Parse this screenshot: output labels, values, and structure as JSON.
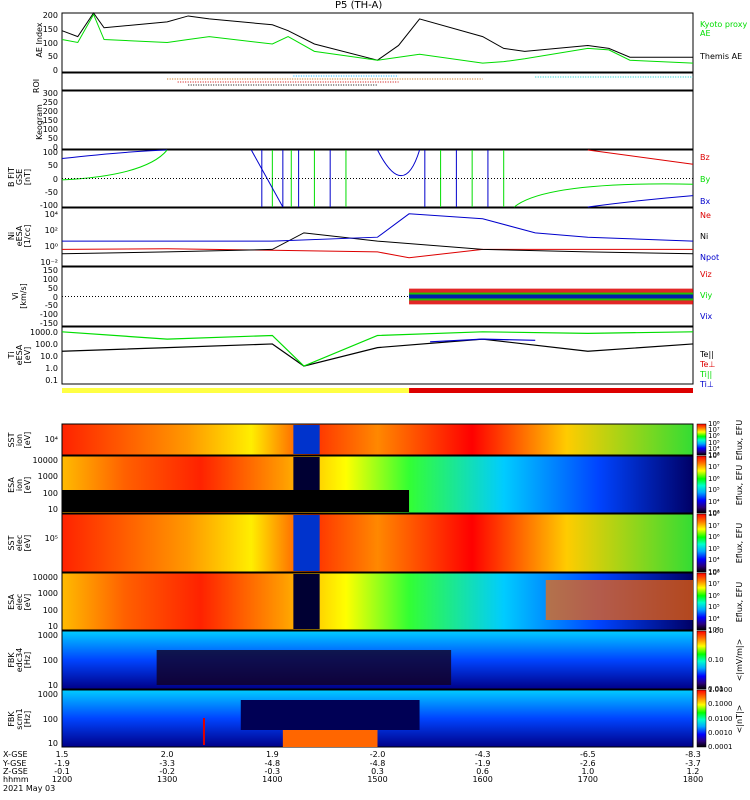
{
  "title": "P5 (TH-A)",
  "colors": {
    "black": "#000000",
    "green": "#00dd00",
    "red": "#dd0000",
    "blue": "#0000cc",
    "cyan": "#00cccc"
  },
  "ae_panel": {
    "ylabel": "AE Index",
    "yticks": [
      "200",
      "150",
      "100",
      "50",
      "0"
    ],
    "legend": [
      {
        "text": "Kyoto proxy AE",
        "color": "#00dd00"
      },
      {
        "text": "Themis AE",
        "color": "#000000"
      }
    ]
  },
  "roi_panel": {
    "ylabel": "ROI"
  },
  "keogram_panel": {
    "ylabel": "Keogram",
    "yticks": [
      "300",
      "250",
      "200",
      "150",
      "100",
      "50",
      "0"
    ]
  },
  "bfit_panel": {
    "ylabel": [
      "B FIT",
      "GSE",
      "[nT]"
    ],
    "yticks": [
      "100",
      "50",
      "0",
      "-50",
      "-100"
    ],
    "legend": [
      {
        "text": "Bz",
        "color": "#dd0000"
      },
      {
        "text": "By",
        "color": "#00dd00"
      },
      {
        "text": "Bx",
        "color": "#0000cc"
      }
    ]
  },
  "density_panel": {
    "ylabel": [
      "Ni",
      "eESA",
      "[1/cc]"
    ],
    "yticks": [
      "10^4",
      "10^2",
      "10^0",
      "10^-2"
    ],
    "legend": [
      {
        "text": "Ne",
        "color": "#dd0000"
      },
      {
        "text": "Ni",
        "color": "#000000"
      },
      {
        "text": "Npot",
        "color": "#0000cc"
      }
    ]
  },
  "velocity_panel": {
    "ylabel": [
      "Vi",
      "[km/s]"
    ],
    "yticks": [
      "150",
      "100",
      "50",
      "0",
      "-50",
      "-100",
      "-150"
    ],
    "legend": [
      {
        "text": "Viz",
        "color": "#dd0000"
      },
      {
        "text": "Viy",
        "color": "#00dd00"
      },
      {
        "text": "Vix",
        "color": "#0000cc"
      }
    ]
  },
  "temperature_panel": {
    "ylabel": [
      "Ti",
      "eESA",
      "[eV]"
    ],
    "yticks": [
      "1000.0",
      "100.0",
      "10.0",
      "1.0",
      "0.1"
    ],
    "legend": [
      {
        "text": "Te||",
        "color": "#000000"
      },
      {
        "text": "Te⊥",
        "color": "#dd0000"
      },
      {
        "text": "Ti||",
        "color": "#00dd00"
      },
      {
        "text": "Ti⊥",
        "color": "#0000cc"
      }
    ]
  },
  "spectrograms": [
    {
      "id": "sst-ion",
      "ylabel": [
        "SST",
        "ion",
        "[eV]"
      ],
      "yticks": [
        "10^4"
      ],
      "cbar_label": "Eflux, EFU",
      "cbar_ticks": [
        "10^8",
        "10^7",
        "10^6",
        "10^5",
        "10^4",
        "10^3"
      ]
    },
    {
      "id": "esa-ion",
      "ylabel": [
        "ESA",
        "ion",
        "[eV]"
      ],
      "yticks": [
        "10000",
        "1000",
        "100",
        "10"
      ],
      "cbar_label": "Eflux, EFU",
      "cbar_ticks": [
        "10^8",
        "10^7",
        "10^6",
        "10^5",
        "10^4",
        "10^3"
      ]
    },
    {
      "id": "sst-elec",
      "ylabel": [
        "SST",
        "elec",
        "[eV]"
      ],
      "yticks": [
        "10^5"
      ],
      "cbar_label": "Eflux, EFU",
      "cbar_ticks": [
        "10^8",
        "10^7",
        "10^6",
        "10^5",
        "10^4",
        "10^3"
      ]
    },
    {
      "id": "esa-elec",
      "ylabel": [
        "ESA",
        "elec",
        "[eV]"
      ],
      "yticks": [
        "10000",
        "1000",
        "100",
        "10"
      ],
      "cbar_label": "Eflux, EFU",
      "cbar_ticks": [
        "10^8",
        "10^7",
        "10^6",
        "10^5",
        "10^4",
        "10^3"
      ]
    },
    {
      "id": "fbk-e",
      "ylabel": [
        "FBK",
        "edc34",
        "[Hz]"
      ],
      "yticks": [
        "1000",
        "100",
        "10"
      ],
      "cbar_label": "<|mV/m|>",
      "cbar_ticks": [
        "1.00",
        "0.10",
        "0.01"
      ]
    },
    {
      "id": "fbk-b",
      "ylabel": [
        "FBK",
        "scm1",
        "[Hz]"
      ],
      "yticks": [
        "1000",
        "100",
        "10"
      ],
      "cbar_label": "<|nT|>",
      "cbar_ticks": [
        "1.0000",
        "0.1000",
        "0.0100",
        "0.0010",
        "0.0001"
      ]
    }
  ],
  "xaxis": {
    "row_labels": [
      "X-GSE",
      "Y-GSE",
      "Z-GSE",
      "hhmm",
      "2021 May 03"
    ],
    "columns": [
      {
        "x": "1.5",
        "y": "-1.9",
        "z": "-0.1",
        "t": "1200"
      },
      {
        "x": "2.0",
        "y": "-3.3",
        "z": "-0.2",
        "t": "1300"
      },
      {
        "x": "1.9",
        "y": "-4.8",
        "z": "-0.3",
        "t": "1400"
      },
      {
        "x": "-2.0",
        "y": "-4.8",
        "z": "0.3",
        "t": "1500"
      },
      {
        "x": "-4.3",
        "y": "-1.9",
        "z": "0.6",
        "t": "1600"
      },
      {
        "x": "-6.5",
        "y": "-2.6",
        "z": "1.0",
        "t": "1700"
      },
      {
        "x": "-8.3",
        "y": "-3.7",
        "z": "1.2",
        "t": "1800"
      }
    ]
  },
  "chart_data": [
    {
      "type": "line",
      "title": "AE Index",
      "ylabel": "AE Index",
      "ylim": [
        0,
        200
      ],
      "xlabel": "hhmm",
      "x_range": [
        "1200",
        "1800"
      ],
      "series": [
        {
          "name": "Themis AE",
          "color": "#000000",
          "x": [
            1200,
            1215,
            1230,
            1240,
            1300,
            1320,
            1340,
            1400,
            1415,
            1440,
            1500,
            1520,
            1540,
            1600,
            1620,
            1640,
            1700,
            1720,
            1740,
            1800
          ],
          "values": [
            140,
            120,
            200,
            150,
            170,
            190,
            180,
            160,
            140,
            95,
            40,
            90,
            180,
            120,
            80,
            70,
            90,
            80,
            50,
            50
          ]
        },
        {
          "name": "Kyoto proxy AE",
          "color": "#00dd00",
          "x": [
            1200,
            1215,
            1230,
            1240,
            1300,
            1320,
            1340,
            1400,
            1415,
            1440,
            1500,
            1520,
            1540,
            1600,
            1620,
            1640,
            1700,
            1720,
            1740,
            1800
          ],
          "values": [
            110,
            100,
            195,
            110,
            100,
            110,
            120,
            95,
            120,
            70,
            40,
            50,
            60,
            30,
            35,
            45,
            80,
            75,
            40,
            30
          ]
        }
      ]
    },
    {
      "type": "line",
      "title": "B FIT GSE",
      "ylabel": "[nT]",
      "ylim": [
        -100,
        100
      ],
      "series": [
        {
          "name": "Bz",
          "color": "#dd0000",
          "x": [
            1700,
            1800
          ],
          "values": [
            50,
            5
          ]
        },
        {
          "name": "By",
          "color": "#00dd00",
          "x": [
            1200,
            1240,
            1300,
            1400,
            1600,
            1620,
            1640,
            1700,
            1800
          ],
          "values": [
            -10,
            0,
            100,
            -100,
            -100,
            -20,
            0,
            -5,
            -10
          ]
        },
        {
          "name": "Bx",
          "color": "#0000cc",
          "x": [
            1200,
            1240,
            1300,
            1700,
            1800
          ],
          "values": [
            75,
            95,
            100,
            -100,
            -60
          ]
        }
      ]
    },
    {
      "type": "line",
      "title": "Ni eESA",
      "ylabel": "[1/cc]",
      "ylim": [
        0.01,
        100000
      ],
      "yscale": "log",
      "series": [
        {
          "name": "Ne",
          "color": "#dd0000",
          "x": [
            1200,
            1300,
            1400,
            1500,
            1530,
            1600,
            1700,
            1800
          ],
          "values": [
            1,
            1.2,
            0.8,
            0.5,
            0.1,
            1,
            1,
            1
          ]
        },
        {
          "name": "Ni",
          "color": "#000000",
          "x": [
            1200,
            1300,
            1400,
            1430,
            1500,
            1600,
            1700,
            1800
          ],
          "values": [
            0.3,
            0.5,
            1,
            100,
            10,
            1,
            0.5,
            0.3
          ]
        },
        {
          "name": "Npot",
          "color": "#0000cc",
          "x": [
            1200,
            1300,
            1400,
            1500,
            1530,
            1600,
            1650,
            1700,
            1800
          ],
          "values": [
            10,
            10,
            10,
            30,
            20000,
            5000,
            100,
            30,
            10
          ]
        }
      ]
    },
    {
      "type": "scatter",
      "title": "Vi",
      "ylabel": "[km/s]",
      "ylim": [
        -150,
        150
      ],
      "series": [
        {
          "name": "Viz",
          "color": "#dd0000",
          "x_range": [
            1530,
            1800
          ],
          "values": [
            -40,
            40
          ]
        },
        {
          "name": "Viy",
          "color": "#00dd00",
          "x_range": [
            1530,
            1800
          ],
          "values": [
            -20,
            20
          ]
        },
        {
          "name": "Vix",
          "color": "#0000cc",
          "x_range": [
            1530,
            1800
          ],
          "values": [
            -10,
            10
          ]
        }
      ]
    },
    {
      "type": "line",
      "title": "Ti eESA",
      "ylabel": "[eV]",
      "ylim": [
        0.1,
        5000
      ],
      "yscale": "log",
      "series": [
        {
          "name": "Te||",
          "color": "#000000",
          "x": [
            1200,
            1300,
            1400,
            1430,
            1500,
            1600,
            1700,
            1800
          ],
          "values": [
            50,
            100,
            200,
            3,
            100,
            500,
            50,
            200
          ]
        },
        {
          "name": "Ti||",
          "color": "#00dd00",
          "x": [
            1200,
            1300,
            1400,
            1430,
            1500,
            1600,
            1700,
            1800
          ],
          "values": [
            2000,
            500,
            1000,
            3,
            1000,
            2000,
            1500,
            2000
          ]
        },
        {
          "name": "Ti⊥",
          "color": "#0000cc",
          "x": [
            1550,
            1600,
            1650
          ],
          "values": [
            300,
            500,
            400
          ]
        }
      ]
    },
    {
      "type": "heatmap",
      "title": "SST ion",
      "ylabel": "[eV]",
      "colorbar": "Eflux, EFU",
      "clim": [
        1000,
        100000000
      ]
    },
    {
      "type": "heatmap",
      "title": "ESA ion",
      "ylabel": "[eV]",
      "colorbar": "Eflux, EFU",
      "clim": [
        1000,
        100000000
      ]
    },
    {
      "type": "heatmap",
      "title": "SST elec",
      "ylabel": "[eV]",
      "colorbar": "Eflux, EFU",
      "clim": [
        1000,
        100000000
      ]
    },
    {
      "type": "heatmap",
      "title": "ESA elec",
      "ylabel": "[eV]",
      "colorbar": "Eflux, EFU",
      "clim": [
        1000,
        100000000
      ]
    },
    {
      "type": "heatmap",
      "title": "FBK edc34",
      "ylabel": "[Hz]",
      "colorbar": "<|mV/m|>",
      "clim": [
        0.01,
        1
      ]
    },
    {
      "type": "heatmap",
      "title": "FBK scm1",
      "ylabel": "[Hz]",
      "colorbar": "<|nT|>",
      "clim": [
        0.0001,
        1
      ]
    }
  ]
}
